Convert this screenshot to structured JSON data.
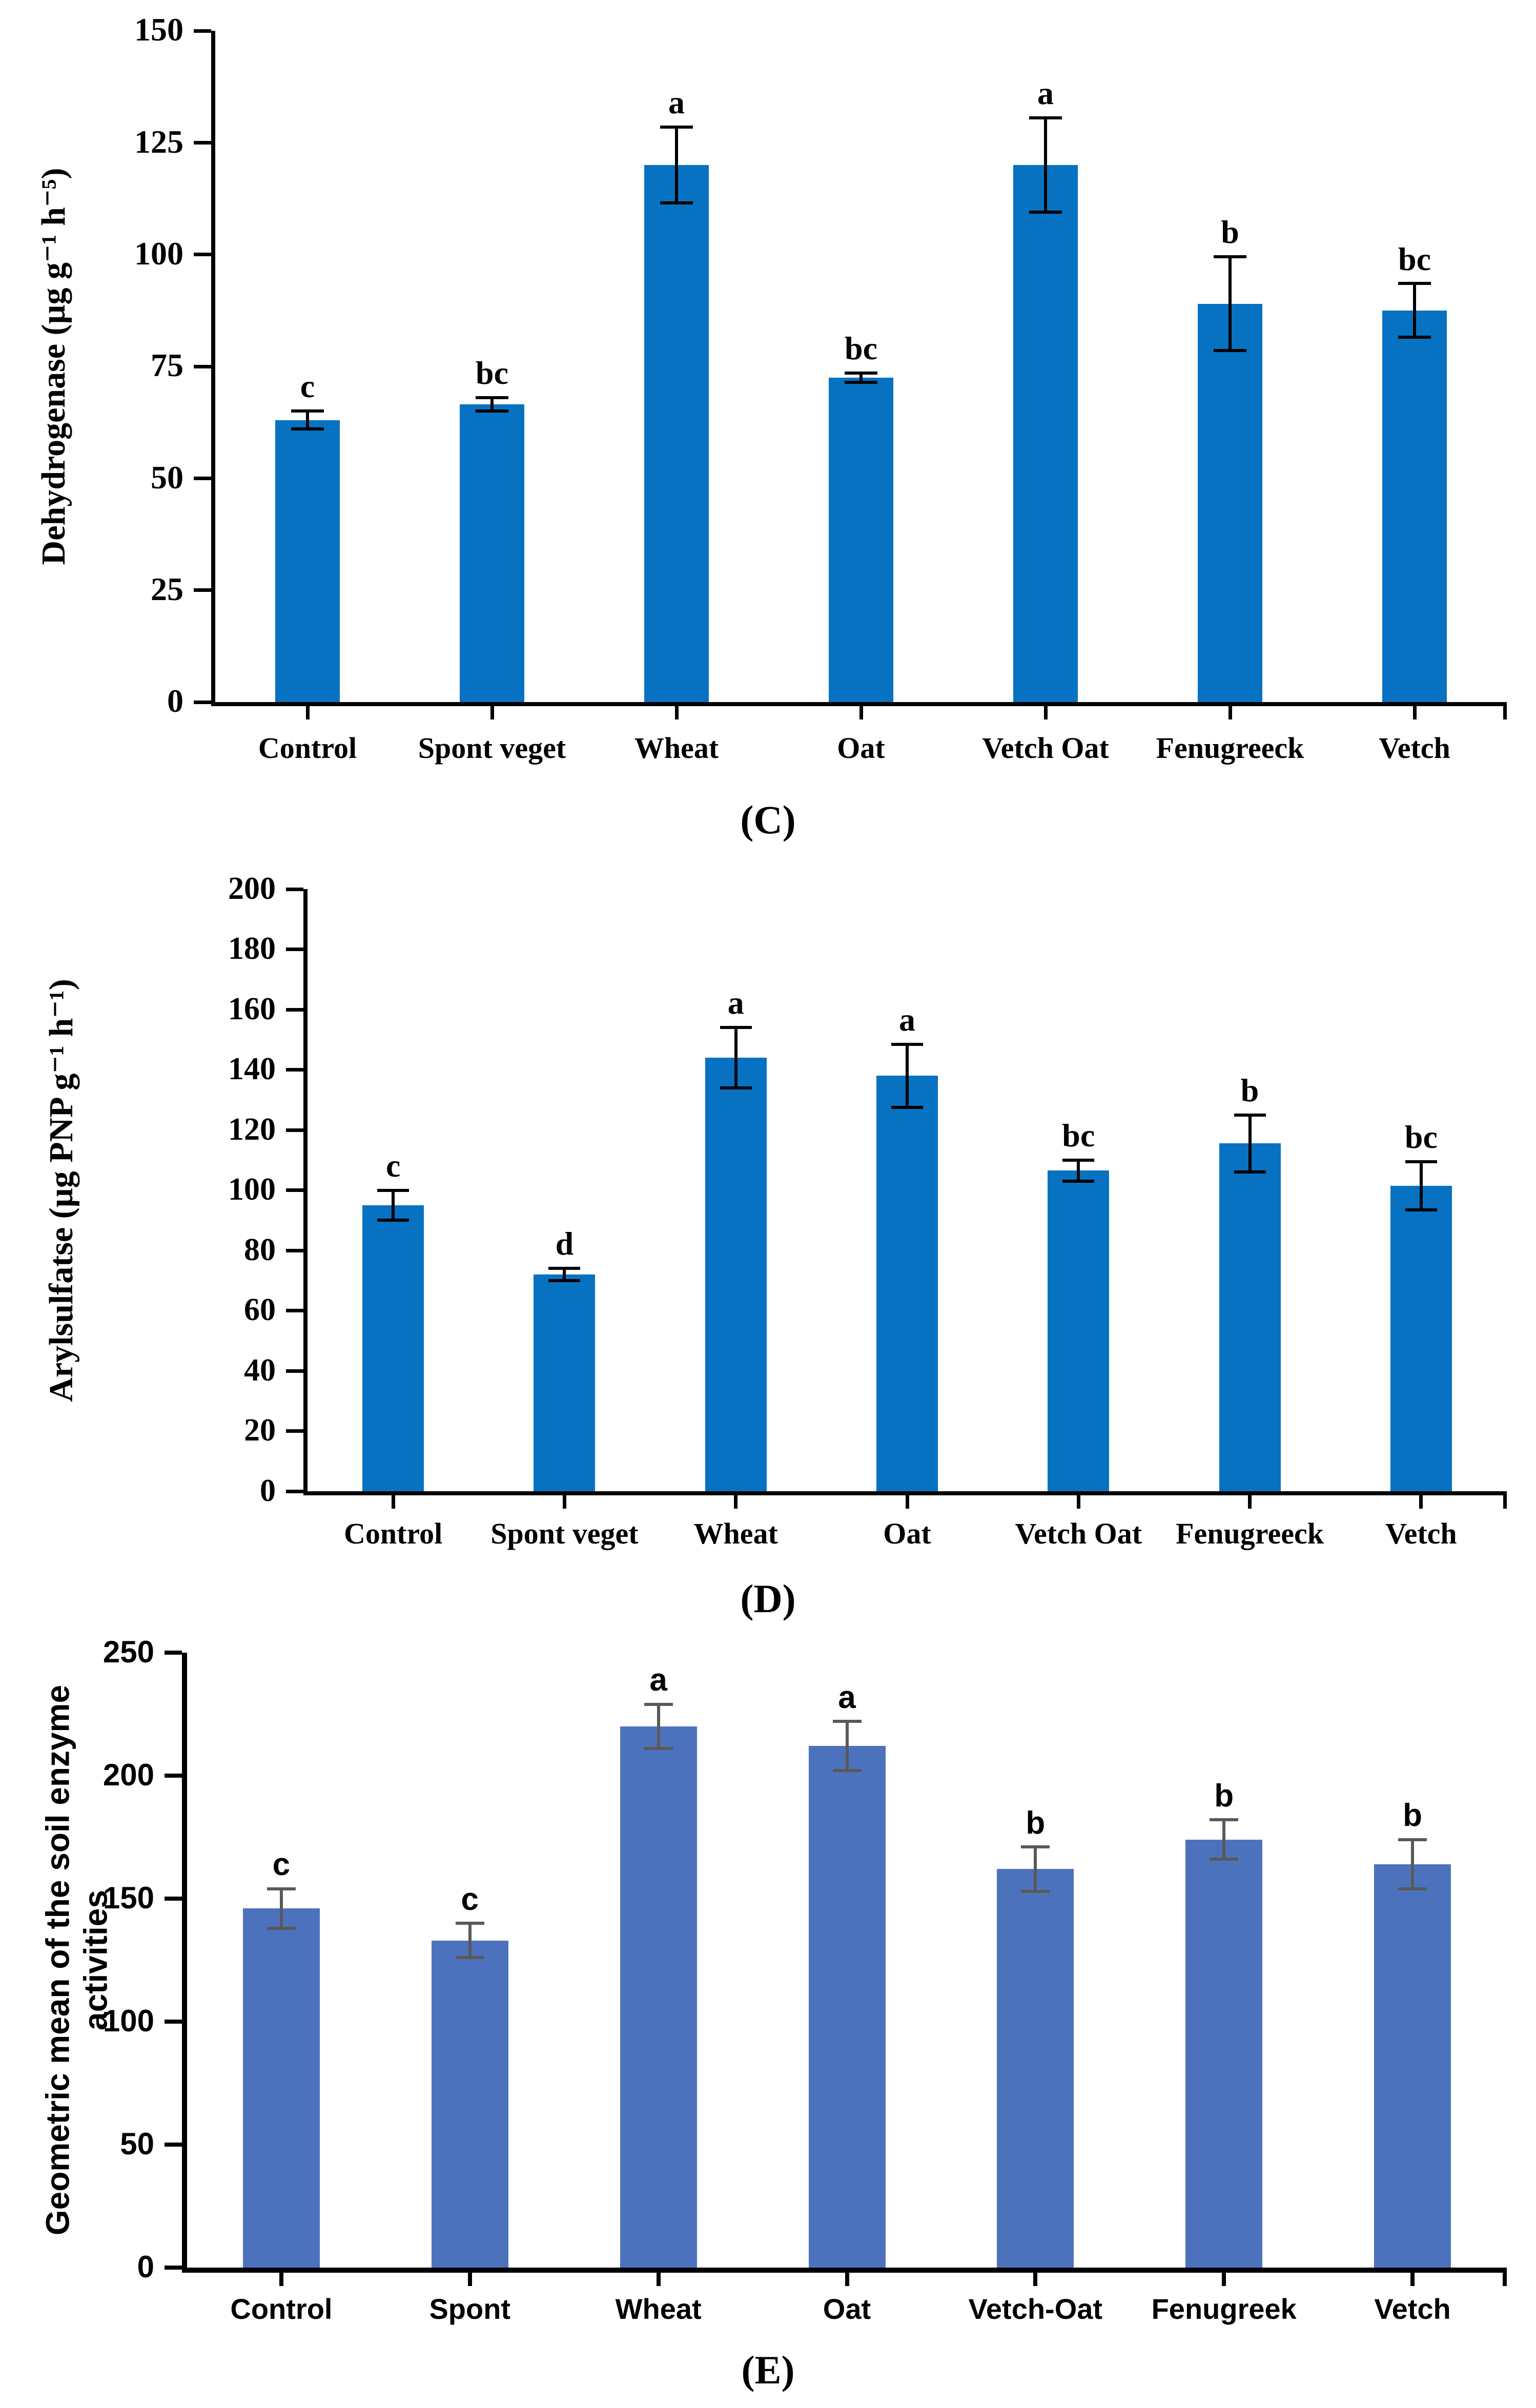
{
  "figure": {
    "background": "#ffffff",
    "panel_count": 3
  },
  "chart_data": [
    {
      "type": "bar",
      "panel_label": "(C)",
      "ylabel": "Dehydrogenase (µg g⁻¹ h⁻⁵)",
      "xlabel": "",
      "categories": [
        "Control",
        "Spont veget",
        "Wheat",
        "Oat",
        "Vetch Oat",
        "Fenugreeck",
        "Vetch"
      ],
      "values": [
        63,
        66.5,
        120,
        72.5,
        120,
        89,
        87.5
      ],
      "errors": [
        2,
        1.5,
        8.5,
        1,
        10.5,
        10.5,
        6
      ],
      "sig_letters": [
        "c",
        "bc",
        "a",
        "bc",
        "a",
        "b",
        "bc"
      ],
      "ylim": [
        0,
        150
      ],
      "ytick_step": 25,
      "ytick_labels": [
        "150",
        "125",
        "100",
        "75",
        "50",
        "25",
        "0"
      ],
      "grid": false,
      "legend": "none",
      "bar_color": "#0872c2",
      "error_color": "#000000",
      "font_style": "serif"
    },
    {
      "type": "bar",
      "panel_label": "(D)",
      "ylabel": "Arylsulfatse (µg PNP g⁻¹ h⁻¹)",
      "xlabel": "",
      "categories": [
        "Control",
        "Spont veget",
        "Wheat",
        "Oat",
        "Vetch Oat",
        "Fenugreeck",
        "Vetch"
      ],
      "values": [
        95,
        72,
        144,
        138,
        106.5,
        115.5,
        101.5
      ],
      "errors": [
        5,
        2,
        10,
        10.5,
        3.5,
        9.5,
        8
      ],
      "sig_letters": [
        "c",
        "d",
        "a",
        "a",
        "bc",
        "b",
        "bc"
      ],
      "ylim": [
        0,
        200
      ],
      "ytick_step": 20,
      "ytick_labels": [
        "200",
        "180",
        "160",
        "140",
        "120",
        "100",
        "80",
        "60",
        "40",
        "20",
        "0"
      ],
      "grid": false,
      "legend": "none",
      "bar_color": "#0872c2",
      "error_color": "#000000",
      "font_style": "serif"
    },
    {
      "type": "bar",
      "panel_label": "(E)",
      "ylabel": "Geometric mean of the soil enzyme activities",
      "xlabel": "",
      "categories": [
        "Control",
        "Spont",
        "Wheat",
        "Oat",
        "Vetch-Oat",
        "Fenugreek",
        "Vetch"
      ],
      "values": [
        146,
        133,
        220,
        212,
        162,
        174,
        164
      ],
      "errors": [
        8,
        7,
        9,
        10,
        9,
        8,
        10
      ],
      "sig_letters": [
        "c",
        "c",
        "a",
        "a",
        "b",
        "b",
        "b"
      ],
      "ylim": [
        0,
        250
      ],
      "ytick_step": 50,
      "ytick_labels": [
        "250",
        "200",
        "150",
        "100",
        "50",
        "0"
      ],
      "grid": false,
      "legend": "none",
      "bar_color": "#4d72bd",
      "error_color": "#595959",
      "font_style": "sans"
    }
  ]
}
